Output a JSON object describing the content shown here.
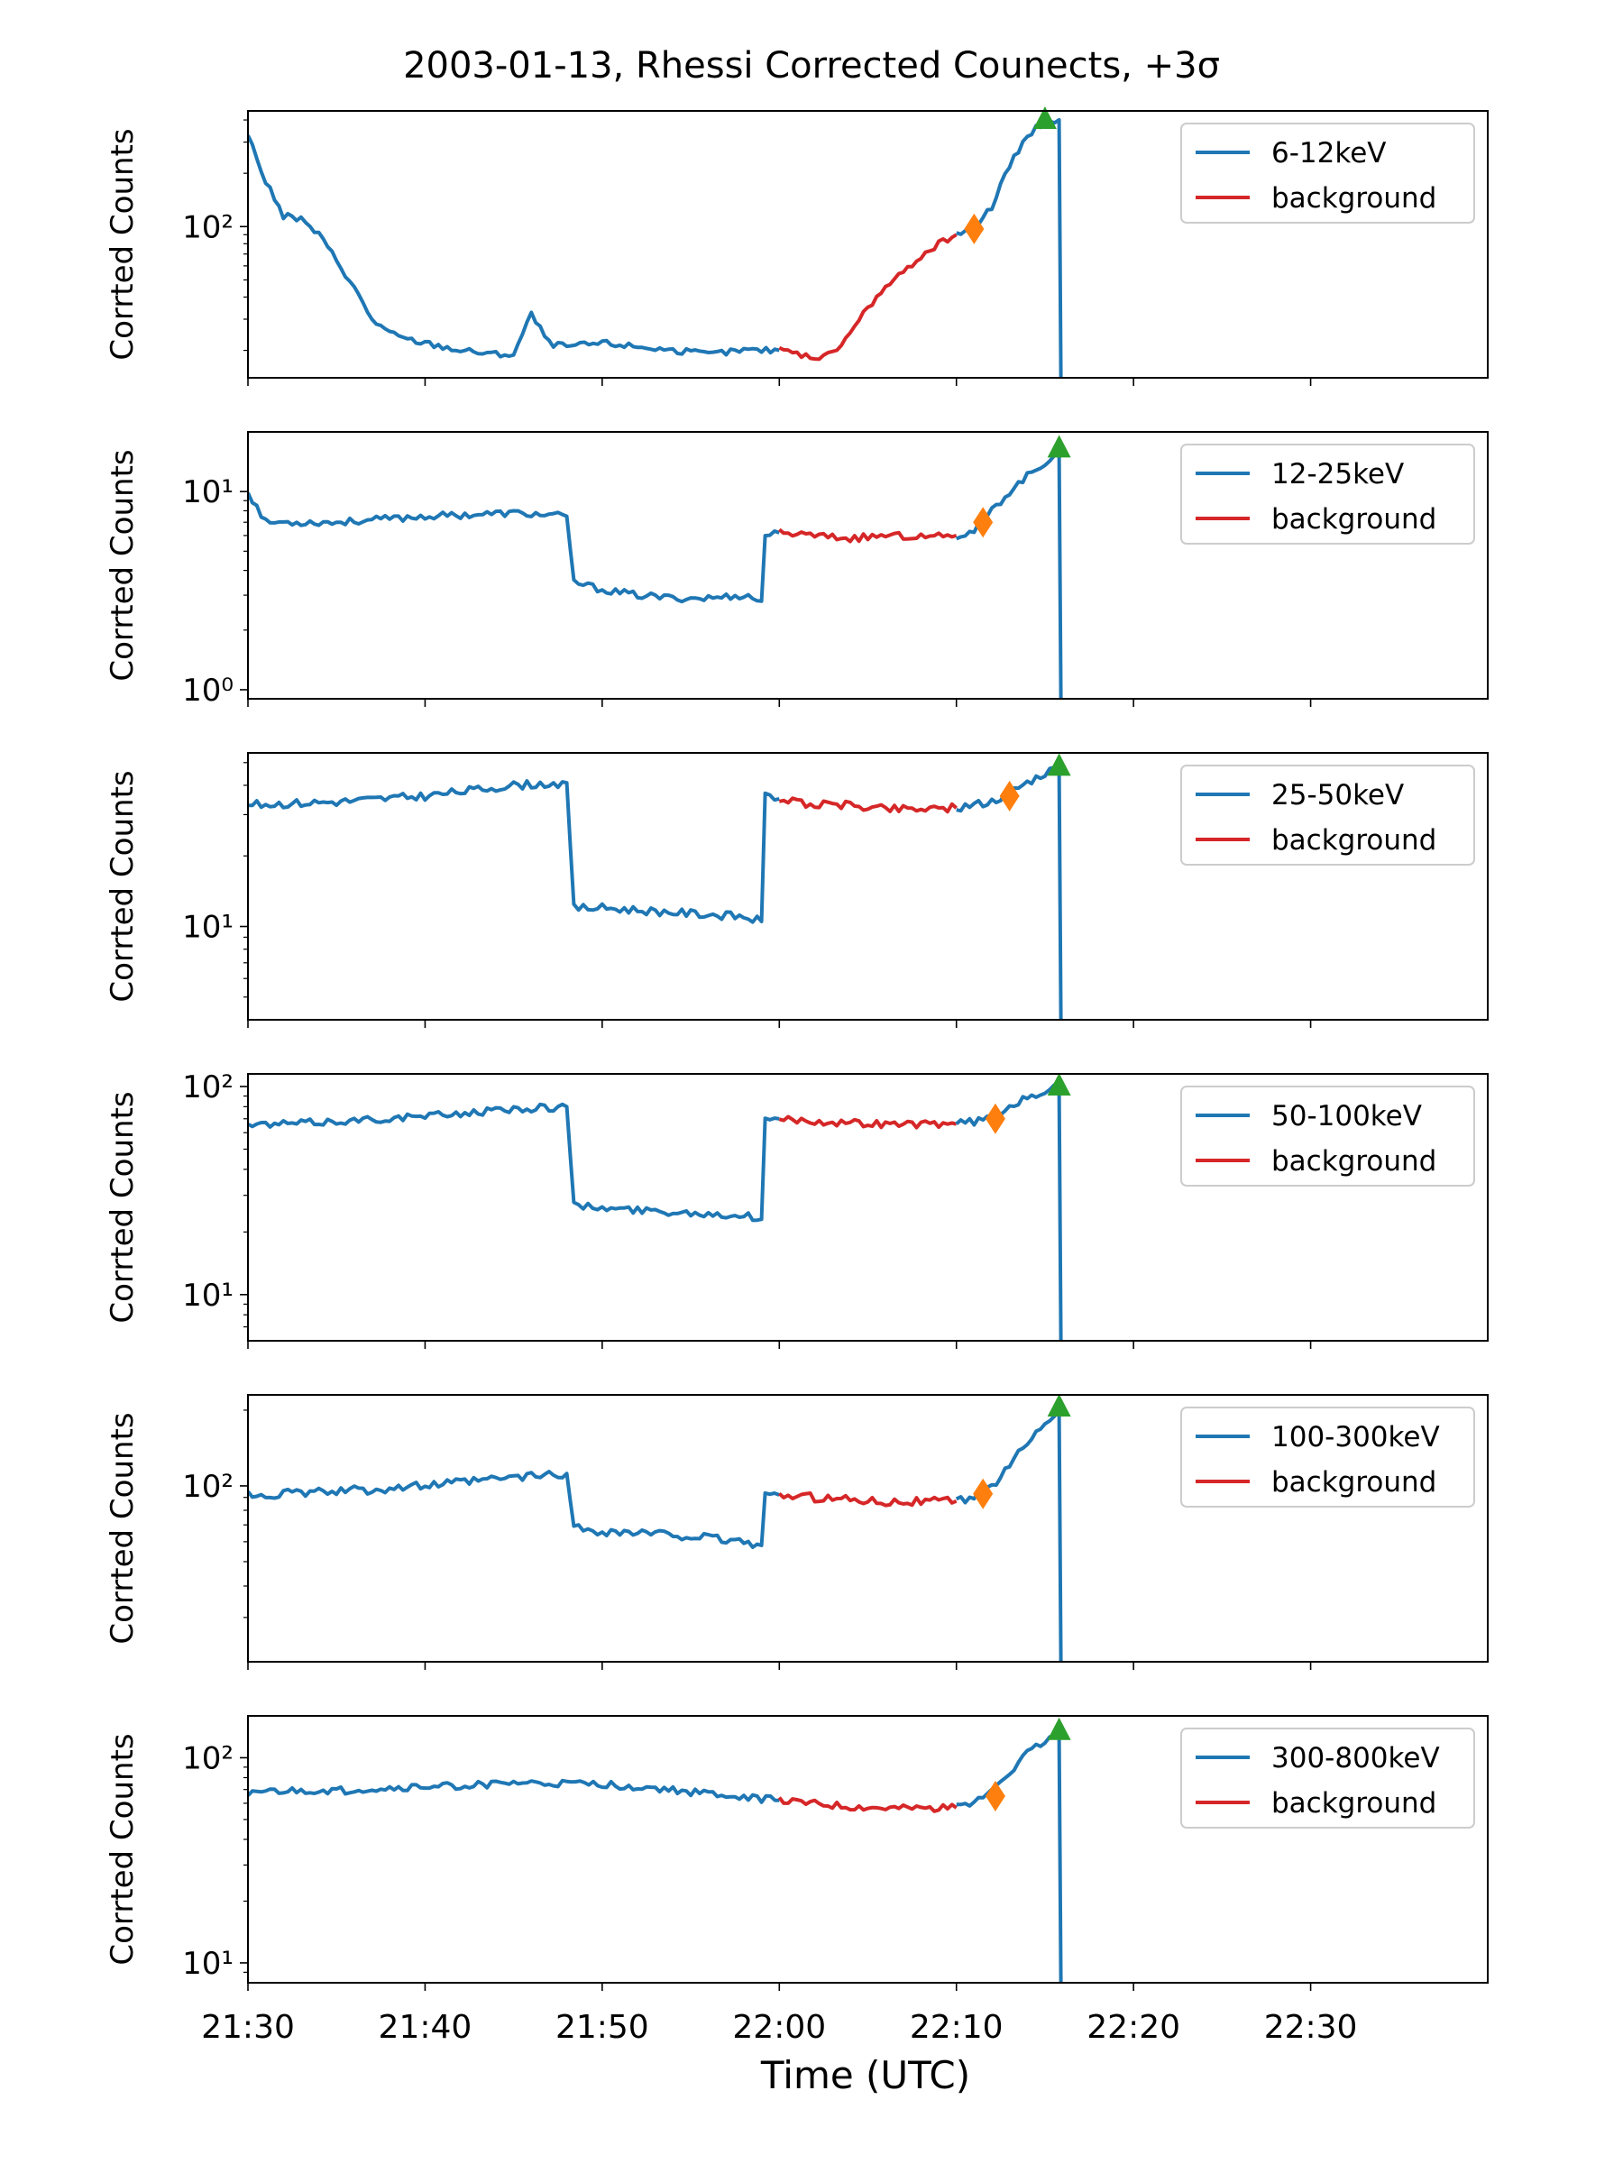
{
  "figure": {
    "title": "2003-01-13, Rhessi Corrected Counects, +3σ",
    "xlabel": "Time (UTC)",
    "xticks": [
      "21:30",
      "21:40",
      "21:50",
      "22:00",
      "22:10",
      "22:20",
      "22:30"
    ],
    "colors": {
      "signal": "#1f77b4",
      "background": "#d62728",
      "diamond": "#ff7f0e",
      "triangle": "#2ca02c"
    }
  },
  "chart_data": [
    {
      "type": "line",
      "ylabel": "Corrted Counts",
      "yscale": "log",
      "ylim": [
        14,
        450
      ],
      "xlim": [
        "21:30",
        "22:40"
      ],
      "yticks": [
        {
          "v": 100,
          "label": "10²"
        }
      ],
      "legend": {
        "position": "top-right",
        "entries": [
          "6-12keV",
          "background"
        ]
      },
      "series": [
        {
          "name": "6-12keV",
          "color": "#1f77b4",
          "points": [
            [
              "21:30",
              330
            ],
            [
              "21:31",
              180
            ],
            [
              "21:32",
              115
            ],
            [
              "21:33",
              110
            ],
            [
              "21:34",
              90
            ],
            [
              "21:35",
              65
            ],
            [
              "21:36",
              45
            ],
            [
              "21:37",
              30
            ],
            [
              "21:38",
              25
            ],
            [
              "21:39",
              23
            ],
            [
              "21:40",
              22
            ],
            [
              "21:42",
              20
            ],
            [
              "21:44",
              19
            ],
            [
              "21:45",
              19
            ],
            [
              "21:46",
              32
            ],
            [
              "21:47",
              22
            ],
            [
              "21:48",
              21
            ],
            [
              "21:50",
              22
            ],
            [
              "21:52",
              21
            ],
            [
              "21:54",
              20
            ],
            [
              "21:56",
              19
            ],
            [
              "21:58",
              20
            ],
            [
              "22:00",
              20
            ]
          ]
        },
        {
          "name": "background",
          "color": "#d62728",
          "points": [
            [
              "22:00",
              20
            ],
            [
              "22:01",
              19
            ],
            [
              "22:02",
              18
            ],
            [
              "22:03",
              19
            ],
            [
              "22:04",
              25
            ],
            [
              "22:05",
              35
            ],
            [
              "22:06",
              45
            ],
            [
              "22:07",
              55
            ],
            [
              "22:08",
              68
            ],
            [
              "22:09",
              80
            ],
            [
              "22:10",
              90
            ]
          ]
        },
        {
          "name": "6-12keV",
          "color": "#1f77b4",
          "points": [
            [
              "22:10",
              90
            ],
            [
              "22:11",
              100
            ],
            [
              "22:12",
              130
            ],
            [
              "22:13",
              220
            ],
            [
              "22:14",
              330
            ],
            [
              "22:15",
              390
            ],
            [
              "22:15.8",
              400
            ],
            [
              "22:15.9",
              14
            ]
          ]
        }
      ],
      "markers": [
        {
          "shape": "diamond",
          "x": "22:11",
          "y": 97
        },
        {
          "shape": "triangle",
          "x": "22:15",
          "y": 400
        }
      ]
    },
    {
      "type": "line",
      "ylabel": "Corrted Counts",
      "yscale": "log",
      "ylim": [
        0.9,
        20
      ],
      "xlim": [
        "21:30",
        "22:40"
      ],
      "yticks": [
        {
          "v": 1,
          "label": "10⁰"
        },
        {
          "v": 10,
          "label": "10¹"
        }
      ],
      "legend": {
        "position": "top-right",
        "entries": [
          "12-25keV",
          "background"
        ]
      },
      "series": [
        {
          "name": "12-25keV",
          "color": "#1f77b4",
          "points": [
            [
              "21:30",
              10
            ],
            [
              "21:31",
              7
            ],
            [
              "21:35",
              7
            ],
            [
              "21:40",
              7.5
            ],
            [
              "21:45",
              7.8
            ],
            [
              "21:48",
              7.5
            ],
            [
              "21:48.4",
              3.5
            ],
            [
              "21:50",
              3.2
            ],
            [
              "21:52",
              3
            ],
            [
              "21:54",
              2.9
            ],
            [
              "21:56",
              2.9
            ],
            [
              "21:58",
              3
            ],
            [
              "21:59",
              2.8
            ],
            [
              "21:59.2",
              6
            ],
            [
              "22:00",
              6.2
            ]
          ]
        },
        {
          "name": "background",
          "color": "#d62728",
          "points": [
            [
              "22:00",
              6.2
            ],
            [
              "22:02",
              6
            ],
            [
              "22:04",
              5.8
            ],
            [
              "22:06",
              6
            ],
            [
              "22:08",
              5.9
            ],
            [
              "22:10",
              6
            ]
          ]
        },
        {
          "name": "12-25keV",
          "color": "#1f77b4",
          "points": [
            [
              "22:10",
              6
            ],
            [
              "22:11",
              6.3
            ],
            [
              "22:12",
              8
            ],
            [
              "22:13",
              10
            ],
            [
              "22:14",
              12
            ],
            [
              "22:15",
              14
            ],
            [
              "22:15.8",
              16
            ],
            [
              "22:15.9",
              0.9
            ]
          ]
        }
      ],
      "markers": [
        {
          "shape": "diamond",
          "x": "22:11.5",
          "y": 7
        },
        {
          "shape": "triangle",
          "x": "22:15.8",
          "y": 16.5
        }
      ]
    },
    {
      "type": "line",
      "ylabel": "Corrted Counts",
      "yscale": "log",
      "ylim": [
        4,
        55
      ],
      "xlim": [
        "21:30",
        "22:40"
      ],
      "yticks": [
        {
          "v": 10,
          "label": "10¹"
        }
      ],
      "legend": {
        "position": "top-right",
        "entries": [
          "25-50keV",
          "background"
        ]
      },
      "series": [
        {
          "name": "25-50keV",
          "color": "#1f77b4",
          "points": [
            [
              "21:30",
              33
            ],
            [
              "21:35",
              34
            ],
            [
              "21:40",
              36
            ],
            [
              "21:45",
              40
            ],
            [
              "21:48",
              41
            ],
            [
              "21:48.4",
              12
            ],
            [
              "21:50",
              12
            ],
            [
              "21:54",
              11.5
            ],
            [
              "21:58",
              11
            ],
            [
              "21:59",
              10.5
            ],
            [
              "21:59.2",
              36
            ],
            [
              "22:00",
              35
            ]
          ]
        },
        {
          "name": "background",
          "color": "#d62728",
          "points": [
            [
              "22:00",
              35
            ],
            [
              "22:02",
              33
            ],
            [
              "22:04",
              33
            ],
            [
              "22:06",
              32
            ],
            [
              "22:08",
              32
            ],
            [
              "22:10",
              32
            ]
          ]
        },
        {
          "name": "25-50keV",
          "color": "#1f77b4",
          "points": [
            [
              "22:10",
              32
            ],
            [
              "22:11",
              33
            ],
            [
              "22:12",
              34
            ],
            [
              "22:13",
              37
            ],
            [
              "22:14",
              41
            ],
            [
              "22:15",
              45
            ],
            [
              "22:15.8",
              48
            ],
            [
              "22:15.9",
              4
            ]
          ]
        }
      ],
      "markers": [
        {
          "shape": "diamond",
          "x": "22:13",
          "y": 36
        },
        {
          "shape": "triangle",
          "x": "22:15.8",
          "y": 48
        }
      ]
    },
    {
      "type": "line",
      "ylabel": "Corrted Counts",
      "yscale": "log",
      "ylim": [
        6,
        115
      ],
      "xlim": [
        "21:30",
        "22:40"
      ],
      "yticks": [
        {
          "v": 10,
          "label": "10¹"
        },
        {
          "v": 100,
          "label": "10²"
        }
      ],
      "legend": {
        "position": "top-right",
        "entries": [
          "50-100keV",
          "background"
        ]
      },
      "series": [
        {
          "name": "50-100keV",
          "color": "#1f77b4",
          "points": [
            [
              "21:30",
              65
            ],
            [
              "21:35",
              68
            ],
            [
              "21:40",
              72
            ],
            [
              "21:45",
              78
            ],
            [
              "21:48",
              80
            ],
            [
              "21:48.4",
              27
            ],
            [
              "21:50",
              26
            ],
            [
              "21:54",
              25
            ],
            [
              "21:58",
              24
            ],
            [
              "21:59",
              23
            ],
            [
              "21:59.2",
              72
            ],
            [
              "22:00",
              70
            ]
          ]
        },
        {
          "name": "background",
          "color": "#d62728",
          "points": [
            [
              "22:00",
              70
            ],
            [
              "22:02",
              68
            ],
            [
              "22:04",
              67
            ],
            [
              "22:06",
              66
            ],
            [
              "22:08",
              66
            ],
            [
              "22:10",
              66
            ]
          ]
        },
        {
          "name": "50-100keV",
          "color": "#1f77b4",
          "points": [
            [
              "22:10",
              66
            ],
            [
              "22:11",
              68
            ],
            [
              "22:12",
              70
            ],
            [
              "22:13",
              80
            ],
            [
              "22:14",
              88
            ],
            [
              "22:15",
              95
            ],
            [
              "22:15.8",
              100
            ],
            [
              "22:15.9",
              6
            ]
          ]
        }
      ],
      "markers": [
        {
          "shape": "diamond",
          "x": "22:12.2",
          "y": 70
        },
        {
          "shape": "triangle",
          "x": "22:15.8",
          "y": 100
        }
      ]
    },
    {
      "type": "line",
      "ylabel": "Corrted Counts",
      "yscale": "log",
      "ylim": [
        20,
        230
      ],
      "xlim": [
        "21:30",
        "22:40"
      ],
      "yticks": [
        {
          "v": 100,
          "label": "10²"
        }
      ],
      "legend": {
        "position": "top-right",
        "entries": [
          "100-300keV",
          "background"
        ]
      },
      "series": [
        {
          "name": "100-300keV",
          "color": "#1f77b4",
          "points": [
            [
              "21:30",
              92
            ],
            [
              "21:35",
              95
            ],
            [
              "21:40",
              100
            ],
            [
              "21:45",
              108
            ],
            [
              "21:48",
              112
            ],
            [
              "21:48.4",
              68
            ],
            [
              "21:50",
              66
            ],
            [
              "21:54",
              64
            ],
            [
              "21:58",
              60
            ],
            [
              "21:59",
              58
            ],
            [
              "21:59.2",
              93
            ],
            [
              "22:00",
              92
            ]
          ]
        },
        {
          "name": "background",
          "color": "#d62728",
          "points": [
            [
              "22:00",
              92
            ],
            [
              "22:02",
              90
            ],
            [
              "22:04",
              89
            ],
            [
              "22:06",
              87
            ],
            [
              "22:08",
              87
            ],
            [
              "22:10",
              87
            ]
          ]
        },
        {
          "name": "100-300keV",
          "color": "#1f77b4",
          "points": [
            [
              "22:10",
              87
            ],
            [
              "22:11",
              90
            ],
            [
              "22:12",
              100
            ],
            [
              "22:13",
              120
            ],
            [
              "22:14",
              150
            ],
            [
              "22:15",
              180
            ],
            [
              "22:15.8",
              200
            ],
            [
              "22:15.9",
              20
            ]
          ]
        }
      ],
      "markers": [
        {
          "shape": "diamond",
          "x": "22:11.5",
          "y": 93
        },
        {
          "shape": "triangle",
          "x": "22:15.8",
          "y": 205
        }
      ]
    },
    {
      "type": "line",
      "ylabel": "Corrted Counts",
      "yscale": "log",
      "ylim": [
        8,
        160
      ],
      "xlim": [
        "21:30",
        "22:40"
      ],
      "yticks": [
        {
          "v": 10,
          "label": "10¹"
        },
        {
          "v": 100,
          "label": "10²"
        }
      ],
      "legend": {
        "position": "top-right",
        "entries": [
          "300-800keV",
          "background"
        ]
      },
      "series": [
        {
          "name": "300-800keV",
          "color": "#1f77b4",
          "points": [
            [
              "21:30",
              68
            ],
            [
              "21:35",
              69
            ],
            [
              "21:40",
              72
            ],
            [
              "21:45",
              75
            ],
            [
              "21:50",
              74
            ],
            [
              "21:52",
              72
            ],
            [
              "21:55",
              68
            ],
            [
              "21:58",
              64
            ],
            [
              "22:00",
              62
            ]
          ]
        },
        {
          "name": "background",
          "color": "#d62728",
          "points": [
            [
              "22:00",
              62
            ],
            [
              "22:02",
              60
            ],
            [
              "22:04",
              58
            ],
            [
              "22:06",
              57
            ],
            [
              "22:08",
              57
            ],
            [
              "22:10",
              57
            ]
          ]
        },
        {
          "name": "300-800keV",
          "color": "#1f77b4",
          "points": [
            [
              "22:10",
              57
            ],
            [
              "22:11",
              60
            ],
            [
              "22:12",
              70
            ],
            [
              "22:13",
              85
            ],
            [
              "22:14",
              105
            ],
            [
              "22:15",
              120
            ],
            [
              "22:15.8",
              130
            ],
            [
              "22:15.9",
              8
            ]
          ]
        }
      ],
      "markers": [
        {
          "shape": "diamond",
          "x": "22:12.2",
          "y": 65
        },
        {
          "shape": "triangle",
          "x": "22:15.8",
          "y": 135
        }
      ]
    }
  ]
}
